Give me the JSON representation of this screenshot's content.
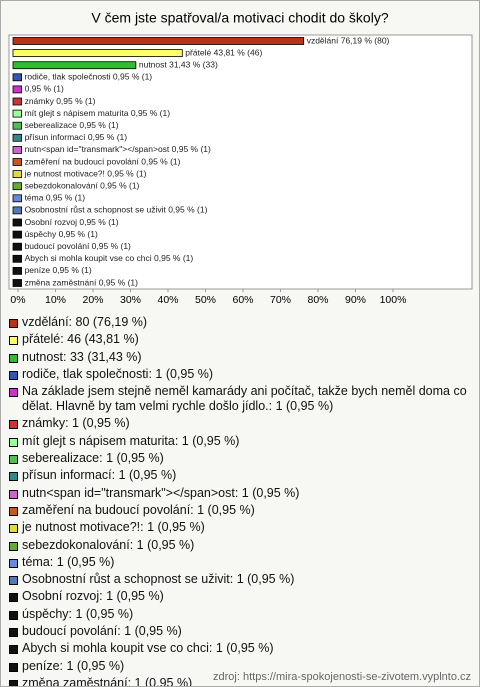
{
  "chart_data": {
    "type": "bar",
    "orientation": "horizontal",
    "title": "V čem jste spatřoval/a motivaci chodit do školy?",
    "values": [
      76.19,
      43.81,
      31.43,
      0.95,
      0.95,
      0.95,
      0.95,
      0.95,
      0.95,
      0.95,
      0.95,
      0.95,
      0.95,
      0.95,
      0.95,
      0.95,
      0.95,
      0.95,
      0.95,
      0.95,
      0.95
    ],
    "value_labels": [
      "vzdělání 76,19 % (80)",
      "přátelé 43,81 % (46)",
      "nutnost 31,43 % (33)",
      "rodiče, tlak společnosti 0,95 % (1)",
      "0,95 % (1)",
      "známky 0,95 % (1)",
      "mít glejt s nápisem maturita 0,95 % (1)",
      "seberealizace 0,95 % (1)",
      "přísun informací 0,95 % (1)",
      "nutn<span id=\"transmark\"></span>ost 0,95 % (1)",
      "zaměření na budoucí povolání 0,95 % (1)",
      "je nutnost motivace?! 0,95 % (1)",
      "sebezdokonalování 0,95 % (1)",
      "téma 0,95 % (1)",
      "Osobnostní růst a schopnost se uživit 0,95 % (1)",
      "Osobní rozvoj 0,95 % (1)",
      "úspěchy 0,95 % (1)",
      "budoucí povolání 0,95 % (1)",
      "Abych si mohla koupit vse co chci 0,95 % (1)",
      "peníze 0,95 % (1)",
      "změna zaměstnání 0,95 % (1)"
    ],
    "legend": [
      "vzdělání: 80 (76,19 %)",
      "přátelé: 46 (43,81 %)",
      "nutnost: 33 (31,43 %)",
      "rodiče, tlak společnosti: 1 (0,95 %)",
      "Na základe jsem stejně neměl kamarády ani počítač, takže bych neměl doma co dělat. Hlavně by tam velmi rychle došlo jídlo.: 1 (0,95 %)",
      "známky: 1 (0,95 %)",
      "mít glejt s nápisem maturita: 1 (0,95 %)",
      "seberealizace: 1 (0,95 %)",
      "přísun informací: 1 (0,95 %)",
      "nutn<span id=\"transmark\"></span>ost: 1 (0,95 %)",
      "zaměření na budoucí povolání: 1 (0,95 %)",
      "je nutnost motivace?!: 1 (0,95 %)",
      "sebezdokonalování: 1 (0,95 %)",
      "téma: 1 (0,95 %)",
      "Osobnostní růst a schopnost se uživit: 1 (0,95 %)",
      "Osobní rozvoj: 1 (0,95 %)",
      "úspěchy: 1 (0,95 %)",
      "budoucí povolání: 1 (0,95 %)",
      "Abych si mohla koupit vse co chci: 1 (0,95 %)",
      "peníze: 1 (0,95 %)",
      "změna zaměstnání: 1 (0,95 %)"
    ],
    "colors": [
      "#b8321e",
      "#ffff66",
      "#33bb33",
      "#3355bb",
      "#cc33cc",
      "#cc3333",
      "#99ff99",
      "#55bb55",
      "#338888",
      "#cc66cc",
      "#cc5522",
      "#dddd33",
      "#66aa33",
      "#6688dd",
      "#5577bb",
      "#111111",
      "#111111",
      "#111111",
      "#111111",
      "#111111",
      "#111111"
    ],
    "xlim": [
      0,
      100
    ],
    "xticks": [
      {
        "value": 0,
        "label": "0%"
      },
      {
        "value": 10,
        "label": "10%"
      },
      {
        "value": 20,
        "label": "20%"
      },
      {
        "value": 30,
        "label": "30%"
      },
      {
        "value": 40,
        "label": "40%"
      },
      {
        "value": 50,
        "label": "50%"
      },
      {
        "value": 60,
        "label": "60%"
      },
      {
        "value": 70,
        "label": "70%"
      },
      {
        "value": 80,
        "label": "80%"
      },
      {
        "value": 90,
        "label": "90%"
      },
      {
        "value": 100,
        "label": "100%"
      }
    ],
    "source": "zdroj: https://mira-spokojenosti-se-zivotem.vyplnto.cz"
  }
}
